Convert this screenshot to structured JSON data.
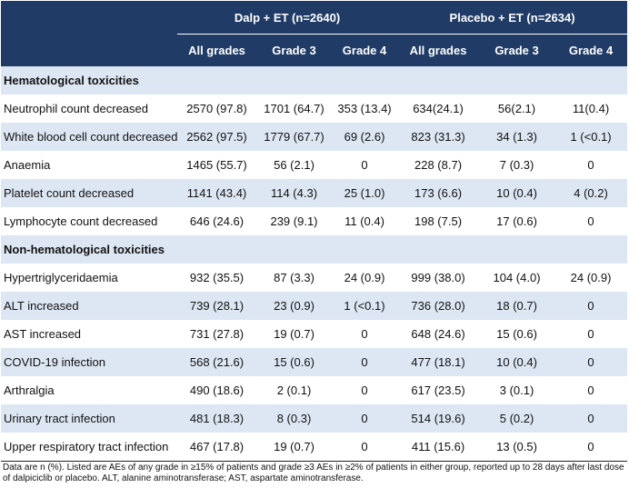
{
  "header": {
    "group_a": "Dalp + ET (n=2640)",
    "group_b": "Placebo + ET (n=2634)",
    "columns": [
      "All grades",
      "Grade 3",
      "Grade 4",
      "All grades",
      "Grade 3",
      "Grade 4"
    ]
  },
  "sections": [
    {
      "title": "Hematological toxicities",
      "rows": [
        {
          "label": "Neutrophil count decreased",
          "values": [
            "2570 (97.8)",
            "1701 (64.7)",
            "353 (13.4)",
            "634(24.1)",
            "56(2.1)",
            "11(0.4)"
          ]
        },
        {
          "label": "White blood cell count decreased",
          "values": [
            "2562 (97.5)",
            "1779 (67.7)",
            "69 (2.6)",
            "823 (31.3)",
            "34 (1.3)",
            "1 (<0.1)"
          ]
        },
        {
          "label": "Anaemia",
          "values": [
            "1465 (55.7)",
            "56 (2.1)",
            "0",
            "228 (8.7)",
            "7 (0.3)",
            "0"
          ]
        },
        {
          "label": "Platelet count decreased",
          "values": [
            "1141 (43.4)",
            "114 (4.3)",
            "25 (1.0)",
            "173 (6.6)",
            "10 (0.4)",
            "4 (0.2)"
          ]
        },
        {
          "label": "Lymphocyte count decreased",
          "values": [
            "646 (24.6)",
            "239 (9.1)",
            "11 (0.4)",
            "198 (7.5)",
            "17 (0.6)",
            "0"
          ]
        }
      ]
    },
    {
      "title": "Non-hematological toxicities",
      "rows": [
        {
          "label": "Hypertriglyceridaemia",
          "values": [
            "932 (35.5)",
            "87 (3.3)",
            "24 (0.9)",
            "999 (38.0)",
            "104 (4.0)",
            "24 (0.9)"
          ]
        },
        {
          "label": "ALT increased",
          "values": [
            "739 (28.1)",
            "23 (0.9)",
            "1 (<0.1)",
            "736 (28.0)",
            "18 (0.7)",
            "0"
          ]
        },
        {
          "label": "AST increased",
          "values": [
            "731 (27.8)",
            "19 (0.7)",
            "0",
            "648 (24.6)",
            "15 (0.6)",
            "0"
          ]
        },
        {
          "label": "COVID-19 infection",
          "values": [
            "568 (21.6)",
            "15 (0.6)",
            "0",
            "477 (18.1)",
            "10 (0.4)",
            "0"
          ]
        },
        {
          "label": "Arthralgia",
          "values": [
            "490 (18.6)",
            "2 (0.1)",
            "0",
            "617 (23.5)",
            "3 (0.1)",
            "0"
          ]
        },
        {
          "label": "Urinary tract infection",
          "values": [
            "481 (18.3)",
            "8 (0.3)",
            "0",
            "514 (19.6)",
            "5 (0.2)",
            "0"
          ]
        },
        {
          "label": "Upper respiratory tract infection",
          "values": [
            "467 (17.8)",
            "19 (0.7)",
            "0",
            "411 (15.6)",
            "13 (0.5)",
            "0"
          ]
        }
      ]
    }
  ],
  "footnote": "Data are n (%). Listed are AEs of any grade in ≥15% of patients and grade ≥3 AEs in ≥2% of patients in either group, reported up to 28 days after last dose of dalpiciclib or placebo. ALT, alanine aminotransferase; AST, aspartate aminotransferase."
}
